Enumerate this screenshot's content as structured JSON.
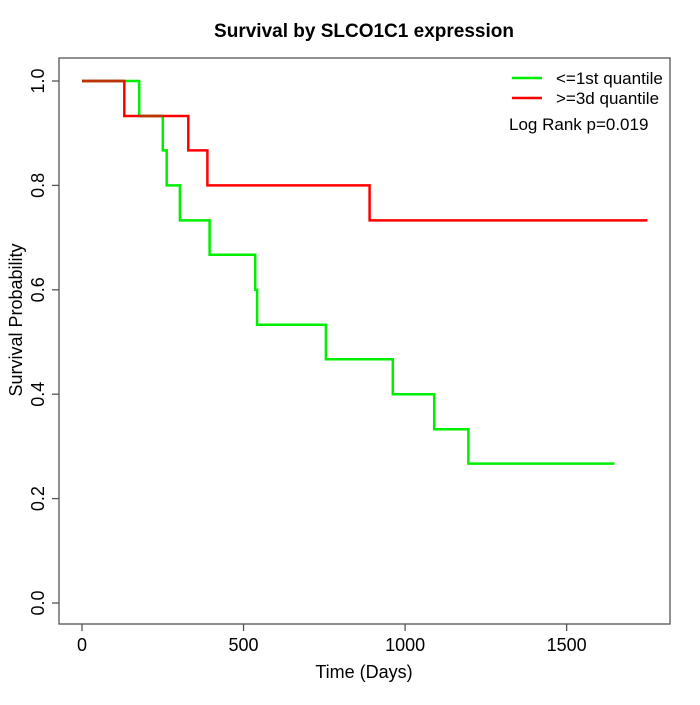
{
  "window": {
    "background": "#ffffff"
  },
  "chart_data": {
    "type": "line",
    "subtype": "kaplan-meier-step-survival",
    "title": "Survival by SLCO1C1 expression",
    "xlabel": "Time (Days)",
    "ylabel": "Survival Probability",
    "xlim": [
      0,
      1750
    ],
    "ylim": [
      0,
      1
    ],
    "xticks": [
      0,
      500,
      1000,
      1500
    ],
    "xtick_labels": [
      "0",
      "500",
      "1000",
      "1500"
    ],
    "yticks": [
      0.0,
      0.2,
      0.4,
      0.6,
      0.8,
      1.0
    ],
    "ytick_labels": [
      "0.0",
      "0.2",
      "0.4",
      "0.6",
      "0.8",
      "1.0"
    ],
    "grid": false,
    "legend_position": "top-right",
    "annotation": "Log Rank p=0.019",
    "frame_color": "#555555",
    "series": [
      {
        "name": "<=1st quantile",
        "color": "#00ee00",
        "steps": [
          [
            0,
            1.0
          ],
          [
            177,
            0.933
          ],
          [
            250,
            0.867
          ],
          [
            262,
            0.8
          ],
          [
            303,
            0.733
          ],
          [
            395,
            0.667
          ],
          [
            536,
            0.6
          ],
          [
            542,
            0.533
          ],
          [
            755,
            0.467
          ],
          [
            962,
            0.4
          ],
          [
            1090,
            0.333
          ],
          [
            1196,
            0.267
          ],
          [
            1648,
            0.267
          ]
        ]
      },
      {
        "name": ">=3d quantile",
        "color": "#ff0000",
        "steps": [
          [
            0,
            1.0
          ],
          [
            131,
            0.933
          ],
          [
            329,
            0.867
          ],
          [
            388,
            0.8
          ],
          [
            890,
            0.733
          ],
          [
            1750,
            0.733
          ]
        ]
      }
    ],
    "overlap_color": "#bb3300",
    "overlap_segments": [
      {
        "y": 1.0,
        "x1": 0,
        "x2": 131
      },
      {
        "y": 0.933,
        "x1": 177,
        "x2": 250
      }
    ]
  }
}
